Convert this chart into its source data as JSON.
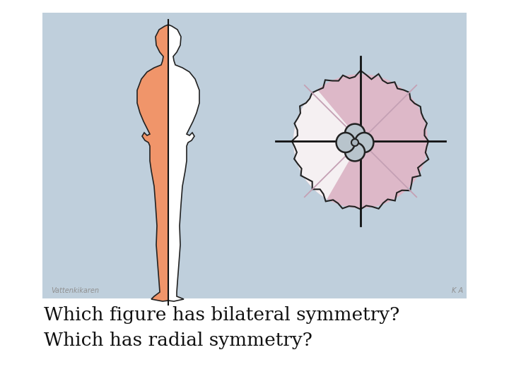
{
  "bg_color": "#bfcfdc",
  "outer_bg": "#ffffff",
  "title_line1": "Which figure has bilateral symmetry?",
  "title_line2": "Which has radial symmetry?",
  "title_fontsize": 19,
  "watermark_left": "Vattenkikaren",
  "watermark_right": "K A",
  "skin_color": "#f0956a",
  "white_color": "#ffffff",
  "radial_pink": "#ddb8c8",
  "radial_white": "#f5f0f2",
  "outline_color": "#222222",
  "line_color": "#111111",
  "diag_color": "#c4a0b4"
}
